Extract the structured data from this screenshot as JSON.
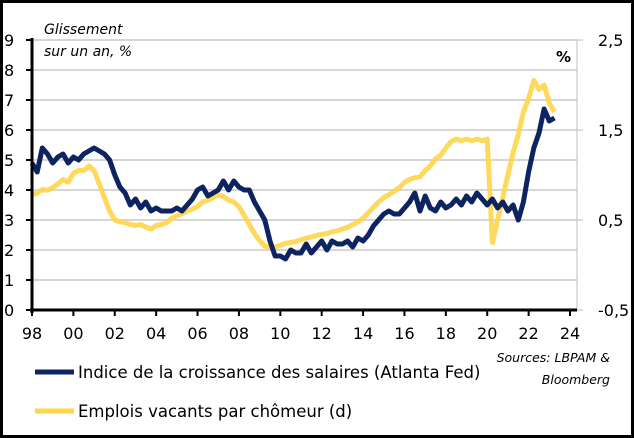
{
  "chart_data": {
    "type": "line",
    "title": "",
    "y_annotation_left": [
      "Glissement",
      "sur un an, %"
    ],
    "y_annotation_right": "%",
    "xlabel": "",
    "x_range": [
      1998,
      2024
    ],
    "x_tick_values": [
      1998,
      2000,
      2002,
      2004,
      2006,
      2008,
      2010,
      2012,
      2014,
      2016,
      2018,
      2020,
      2022,
      2024
    ],
    "x_tick_labels": [
      "98",
      "00",
      "02",
      "04",
      "06",
      "08",
      "10",
      "12",
      "14",
      "16",
      "18",
      "20",
      "22",
      "24"
    ],
    "y_left": {
      "range": [
        0,
        9
      ],
      "ticks": [
        0,
        1,
        2,
        3,
        4,
        5,
        6,
        7,
        8,
        9
      ],
      "tick_labels": [
        "0",
        "1",
        "2",
        "3",
        "4",
        "5",
        "6",
        "7",
        "8",
        "9"
      ]
    },
    "y_right": {
      "range": [
        -0.5,
        2.5
      ],
      "ticks": [
        -0.5,
        0.5,
        1.5,
        2.5
      ],
      "tick_labels": [
        "-0,5",
        "0,5",
        "1,5",
        "2,5"
      ]
    },
    "grid": true,
    "legend_position": "bottom-left",
    "source": [
      "Sources: LBPAM &",
      "Bloomberg"
    ],
    "series": [
      {
        "name": "Indice de la croissance des salaires (Atlanta Fed)",
        "axis": "left",
        "color": "#0d2461",
        "x": [
          1998.0,
          1998.25,
          1998.5,
          1998.75,
          1999.0,
          1999.25,
          1999.5,
          1999.75,
          2000.0,
          2000.25,
          2000.5,
          2000.75,
          2001.0,
          2001.25,
          2001.5,
          2001.75,
          2002.0,
          2002.25,
          2002.5,
          2002.75,
          2003.0,
          2003.25,
          2003.5,
          2003.75,
          2004.0,
          2004.25,
          2004.5,
          2004.75,
          2005.0,
          2005.25,
          2005.5,
          2005.75,
          2006.0,
          2006.25,
          2006.5,
          2006.75,
          2007.0,
          2007.25,
          2007.5,
          2007.75,
          2008.0,
          2008.25,
          2008.5,
          2008.75,
          2009.0,
          2009.25,
          2009.5,
          2009.75,
          2010.0,
          2010.25,
          2010.5,
          2010.75,
          2011.0,
          2011.25,
          2011.5,
          2011.75,
          2012.0,
          2012.25,
          2012.5,
          2012.75,
          2013.0,
          2013.25,
          2013.5,
          2013.75,
          2014.0,
          2014.25,
          2014.5,
          2014.75,
          2015.0,
          2015.25,
          2015.5,
          2015.75,
          2016.0,
          2016.25,
          2016.5,
          2016.75,
          2017.0,
          2017.25,
          2017.5,
          2017.75,
          2018.0,
          2018.25,
          2018.5,
          2018.75,
          2019.0,
          2019.25,
          2019.5,
          2019.75,
          2020.0,
          2020.25,
          2020.5,
          2020.75,
          2021.0,
          2021.25,
          2021.5,
          2021.75,
          2022.0,
          2022.25,
          2022.5,
          2022.75,
          2023.0,
          2023.25
        ],
        "values": [
          4.9,
          4.6,
          5.4,
          5.2,
          4.9,
          5.1,
          5.2,
          4.9,
          5.1,
          5.0,
          5.2,
          5.3,
          5.4,
          5.3,
          5.2,
          5.0,
          4.5,
          4.1,
          3.9,
          3.5,
          3.7,
          3.4,
          3.6,
          3.3,
          3.4,
          3.3,
          3.3,
          3.3,
          3.4,
          3.3,
          3.5,
          3.7,
          4.0,
          4.1,
          3.8,
          3.9,
          4.0,
          4.3,
          4.0,
          4.3,
          4.1,
          4.0,
          4.0,
          3.6,
          3.3,
          3.0,
          2.3,
          1.8,
          1.8,
          1.7,
          2.0,
          1.9,
          1.9,
          2.2,
          1.9,
          2.1,
          2.3,
          2.0,
          2.3,
          2.2,
          2.2,
          2.3,
          2.1,
          2.4,
          2.3,
          2.5,
          2.8,
          3.0,
          3.2,
          3.3,
          3.2,
          3.2,
          3.4,
          3.6,
          3.9,
          3.3,
          3.8,
          3.4,
          3.3,
          3.6,
          3.4,
          3.5,
          3.7,
          3.5,
          3.8,
          3.6,
          3.9,
          3.7,
          3.5,
          3.7,
          3.4,
          3.6,
          3.3,
          3.5,
          3.0,
          3.6,
          4.6,
          5.4,
          5.9,
          6.7,
          6.3,
          6.4
        ],
        "value_at_2023_5": 6.4
      },
      {
        "name": "Emplois vacants par chômeur (d)",
        "axis": "right",
        "color": "#ffd54a",
        "x": [
          1998.0,
          1998.25,
          1998.5,
          1998.75,
          1999.0,
          1999.25,
          1999.5,
          1999.75,
          2000.0,
          2000.25,
          2000.5,
          2000.75,
          2001.0,
          2001.25,
          2001.5,
          2001.75,
          2002.0,
          2002.25,
          2002.5,
          2002.75,
          2003.0,
          2003.25,
          2003.5,
          2003.75,
          2004.0,
          2004.25,
          2004.5,
          2004.75,
          2005.0,
          2005.25,
          2005.5,
          2005.75,
          2006.0,
          2006.25,
          2006.5,
          2006.75,
          2007.0,
          2007.25,
          2007.5,
          2007.75,
          2008.0,
          2008.25,
          2008.5,
          2008.75,
          2009.0,
          2009.25,
          2009.5,
          2009.75,
          2010.0,
          2010.25,
          2010.5,
          2010.75,
          2011.0,
          2011.25,
          2011.5,
          2011.75,
          2012.0,
          2012.25,
          2012.5,
          2012.75,
          2013.0,
          2013.25,
          2013.5,
          2013.75,
          2014.0,
          2014.25,
          2014.5,
          2014.75,
          2015.0,
          2015.25,
          2015.5,
          2015.75,
          2016.0,
          2016.25,
          2016.5,
          2016.75,
          2017.0,
          2017.25,
          2017.5,
          2017.75,
          2018.0,
          2018.25,
          2018.5,
          2018.75,
          2019.0,
          2019.25,
          2019.5,
          2019.75,
          2020.0,
          2020.25,
          2020.5,
          2020.75,
          2021.0,
          2021.25,
          2021.5,
          2021.75,
          2022.0,
          2022.25,
          2022.5,
          2022.75,
          2023.0,
          2023.25
        ],
        "values": [
          0.78,
          0.8,
          0.84,
          0.83,
          0.86,
          0.9,
          0.95,
          0.92,
          1.02,
          1.05,
          1.05,
          1.1,
          1.05,
          0.9,
          0.75,
          0.6,
          0.5,
          0.48,
          0.47,
          0.45,
          0.44,
          0.45,
          0.42,
          0.4,
          0.44,
          0.45,
          0.47,
          0.52,
          0.55,
          0.57,
          0.6,
          0.62,
          0.65,
          0.7,
          0.72,
          0.75,
          0.78,
          0.76,
          0.72,
          0.7,
          0.65,
          0.55,
          0.45,
          0.35,
          0.27,
          0.21,
          0.2,
          0.2,
          0.22,
          0.24,
          0.25,
          0.26,
          0.28,
          0.3,
          0.31,
          0.33,
          0.34,
          0.35,
          0.37,
          0.38,
          0.4,
          0.42,
          0.45,
          0.48,
          0.52,
          0.58,
          0.64,
          0.7,
          0.75,
          0.78,
          0.82,
          0.86,
          0.92,
          0.95,
          0.97,
          0.98,
          1.05,
          1.1,
          1.18,
          1.22,
          1.3,
          1.37,
          1.4,
          1.38,
          1.4,
          1.38,
          1.4,
          1.38,
          1.4,
          0.25,
          0.5,
          0.75,
          1.0,
          1.25,
          1.45,
          1.7,
          1.85,
          2.05,
          1.95,
          2.0,
          1.8,
          1.7
        ]
      }
    ]
  },
  "legend": [
    {
      "label": "Indice de la croissance des salaires (Atlanta Fed)",
      "color": "#0d2461"
    },
    {
      "label": "Emplois vacants par chômeur (d)",
      "color": "#ffd54a"
    }
  ]
}
